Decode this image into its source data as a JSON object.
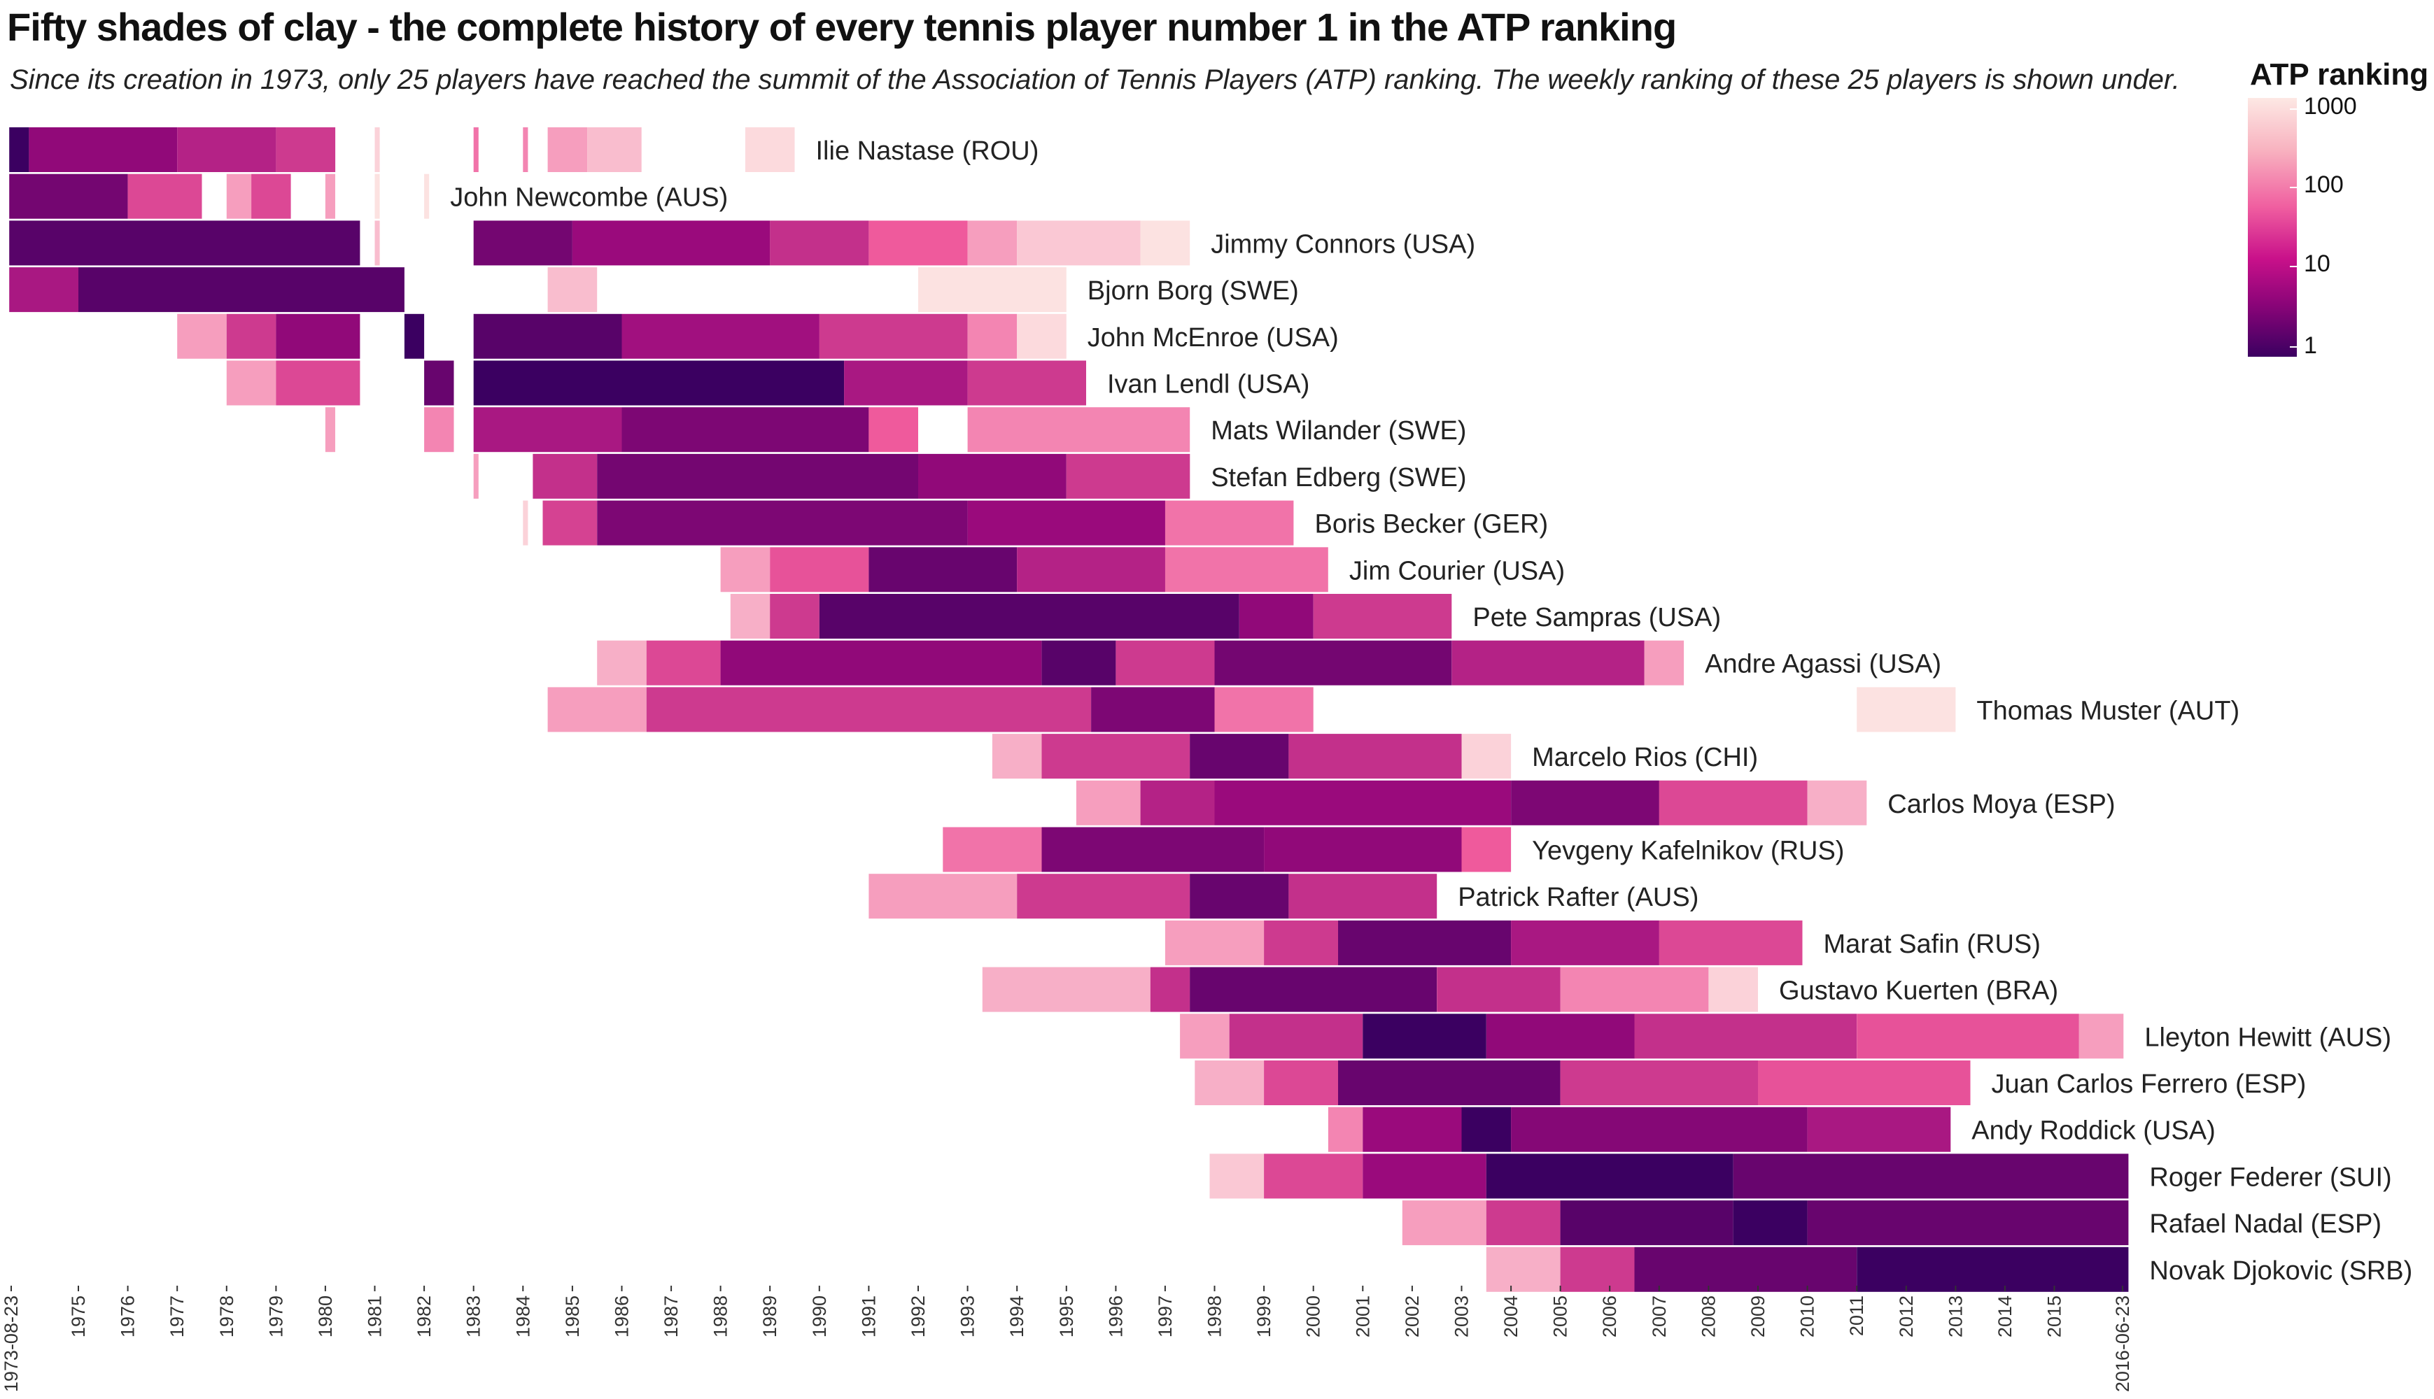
{
  "title": "Fifty shades of clay - the complete history of every tennis player number 1 in the ATP ranking",
  "subtitle": "Since its creation in 1973, only 25 players have reached the summit of the Association of Tennis Players (ATP) ranking. The weekly ranking of these 25 players is shown under.",
  "legend": {
    "title": "ATP ranking",
    "ticks": [
      "1000",
      "100",
      "10",
      "1"
    ]
  },
  "colors": {
    "rank_1": "#3b0061",
    "rank_10": "#9a0a7c",
    "rank_100": "#ef5a9c",
    "rank_1000": "#fde8e4"
  },
  "chart_data": {
    "type": "heatmap",
    "scale": "log",
    "x_start_label": "1973-08-23",
    "x_end_label": "2016-06-23",
    "x_tick_labels": [
      "1973-08-23",
      "1975",
      "1976",
      "1977",
      "1978",
      "1979",
      "1980",
      "1981",
      "1982",
      "1983",
      "1984",
      "1985",
      "1986",
      "1987",
      "1988",
      "1989",
      "1990",
      "1991",
      "1992",
      "1993",
      "1994",
      "1995",
      "1996",
      "1997",
      "1998",
      "1999",
      "2000",
      "2001",
      "2002",
      "2003",
      "2004",
      "2005",
      "2006",
      "2007",
      "2008",
      "2009",
      "2010",
      "2011",
      "2012",
      "2013",
      "2014",
      "2015",
      "2016-06-23"
    ],
    "series": [
      {
        "name": "Ilie Nastase (ROU)",
        "segments": [
          [
            1973.6,
            1974.0,
            1
          ],
          [
            1974.0,
            1977.0,
            8
          ],
          [
            1977.0,
            1979.0,
            20
          ],
          [
            1979.0,
            1980.2,
            40
          ],
          [
            1981.0,
            1981.1,
            700
          ],
          [
            1983.0,
            1983.1,
            150
          ],
          [
            1984.0,
            1984.1,
            200
          ],
          [
            1984.5,
            1985.3,
            300
          ],
          [
            1985.3,
            1986.4,
            500
          ],
          [
            1988.5,
            1989.5,
            800
          ]
        ]
      },
      {
        "name": "John Newcombe (AUS)",
        "segments": [
          [
            1973.6,
            1976.0,
            4
          ],
          [
            1976.0,
            1977.5,
            60
          ],
          [
            1978.0,
            1978.5,
            300
          ],
          [
            1978.5,
            1979.3,
            60
          ],
          [
            1980.0,
            1980.2,
            300
          ],
          [
            1981.0,
            1981.1,
            900
          ],
          [
            1982.0,
            1982.1,
            900
          ]
        ]
      },
      {
        "name": "Jimmy Connors (USA)",
        "segments": [
          [
            1973.6,
            1980.7,
            2
          ],
          [
            1981.0,
            1981.1,
            500
          ],
          [
            1983.0,
            1985.0,
            4
          ],
          [
            1985.0,
            1989.0,
            10
          ],
          [
            1989.0,
            1991.0,
            30
          ],
          [
            1991.0,
            1993.0,
            100
          ],
          [
            1993.0,
            1994.0,
            300
          ],
          [
            1994.0,
            1996.5,
            600
          ],
          [
            1996.5,
            1997.5,
            900
          ]
        ]
      },
      {
        "name": "Bjorn Borg (SWE)",
        "segments": [
          [
            1973.6,
            1975.0,
            15
          ],
          [
            1975.0,
            1981.6,
            2
          ],
          [
            1984.5,
            1985.5,
            500
          ],
          [
            1992.0,
            1995.0,
            900
          ]
        ]
      },
      {
        "name": "John McEnroe (USA)",
        "segments": [
          [
            1977.0,
            1978.0,
            300
          ],
          [
            1978.0,
            1979.0,
            40
          ],
          [
            1979.0,
            1980.7,
            8
          ],
          [
            1981.6,
            1982.0,
            1
          ],
          [
            1983.0,
            1986.0,
            2
          ],
          [
            1986.0,
            1990.0,
            12
          ],
          [
            1990.0,
            1993.0,
            40
          ],
          [
            1993.0,
            1994.0,
            200
          ],
          [
            1994.0,
            1995.0,
            800
          ]
        ]
      },
      {
        "name": "Ivan Lendl (USA)",
        "segments": [
          [
            1978.0,
            1979.0,
            300
          ],
          [
            1979.0,
            1980.7,
            60
          ],
          [
            1982.0,
            1982.6,
            3
          ],
          [
            1983.0,
            1990.5,
            1
          ],
          [
            1990.5,
            1993.0,
            15
          ],
          [
            1993.0,
            1995.4,
            40
          ]
        ]
      },
      {
        "name": "Mats Wilander (SWE)",
        "segments": [
          [
            1980.0,
            1980.2,
            300
          ],
          [
            1982.0,
            1982.6,
            200
          ],
          [
            1983.0,
            1986.0,
            15
          ],
          [
            1986.0,
            1991.0,
            5
          ],
          [
            1991.0,
            1992.0,
            100
          ],
          [
            1993.0,
            1997.5,
            200
          ]
        ]
      },
      {
        "name": "Stefan Edberg (SWE)",
        "segments": [
          [
            1983.0,
            1983.1,
            300
          ],
          [
            1984.2,
            1985.5,
            30
          ],
          [
            1985.5,
            1992.0,
            4
          ],
          [
            1992.0,
            1995.0,
            8
          ],
          [
            1995.0,
            1997.5,
            40
          ]
        ]
      },
      {
        "name": "Boris Becker (GER)",
        "segments": [
          [
            1984.0,
            1984.1,
            700
          ],
          [
            1984.4,
            1985.5,
            50
          ],
          [
            1985.5,
            1993.0,
            5
          ],
          [
            1993.0,
            1997.0,
            10
          ],
          [
            1997.0,
            1999.6,
            150
          ]
        ]
      },
      {
        "name": "Jim Courier (USA)",
        "segments": [
          [
            1988.0,
            1989.0,
            300
          ],
          [
            1989.0,
            1991.0,
            80
          ],
          [
            1991.0,
            1994.0,
            3
          ],
          [
            1994.0,
            1997.0,
            20
          ],
          [
            1997.0,
            2000.3,
            150
          ]
        ]
      },
      {
        "name": "Pete Sampras (USA)",
        "segments": [
          [
            1988.2,
            1989.0,
            400
          ],
          [
            1989.0,
            1990.0,
            40
          ],
          [
            1990.0,
            1998.5,
            2
          ],
          [
            1998.5,
            2000.0,
            8
          ],
          [
            2000.0,
            2002.8,
            40
          ]
        ]
      },
      {
        "name": "Andre Agassi (USA)",
        "segments": [
          [
            1985.5,
            1986.5,
            400
          ],
          [
            1986.5,
            1988.0,
            60
          ],
          [
            1988.0,
            1994.5,
            8
          ],
          [
            1994.5,
            1996.0,
            2
          ],
          [
            1996.0,
            1998.0,
            40
          ],
          [
            1998.0,
            2002.8,
            4
          ],
          [
            2002.8,
            2006.7,
            20
          ],
          [
            2006.7,
            2007.5,
            300
          ]
        ]
      },
      {
        "name": "Thomas Muster (AUT)",
        "segments": [
          [
            1984.5,
            1986.5,
            300
          ],
          [
            1986.5,
            1995.5,
            40
          ],
          [
            1995.5,
            1998.0,
            5
          ],
          [
            1998.0,
            2000.0,
            150
          ],
          [
            2011.0,
            2013.0,
            900
          ]
        ]
      },
      {
        "name": "Marcelo Rios (CHI)",
        "segments": [
          [
            1993.5,
            1994.5,
            400
          ],
          [
            1994.5,
            1997.5,
            40
          ],
          [
            1997.5,
            1999.5,
            3
          ],
          [
            1999.5,
            2003.0,
            30
          ],
          [
            2003.0,
            2004.0,
            700
          ]
        ]
      },
      {
        "name": "Carlos Moya (ESP)",
        "segments": [
          [
            1995.2,
            1996.5,
            300
          ],
          [
            1996.5,
            1998.0,
            20
          ],
          [
            1998.0,
            2004.0,
            10
          ],
          [
            2004.0,
            2007.0,
            5
          ],
          [
            2007.0,
            2010.0,
            60
          ],
          [
            2010.0,
            2011.2,
            400
          ]
        ]
      },
      {
        "name": "Yevgeny Kafelnikov (RUS)",
        "segments": [
          [
            1992.5,
            1994.5,
            150
          ],
          [
            1994.5,
            1999.0,
            5
          ],
          [
            1999.0,
            2003.0,
            8
          ],
          [
            2003.0,
            2004.0,
            100
          ]
        ]
      },
      {
        "name": "Patrick Rafter (AUS)",
        "segments": [
          [
            1991.0,
            1994.0,
            300
          ],
          [
            1994.0,
            1997.5,
            40
          ],
          [
            1997.5,
            1999.5,
            3
          ],
          [
            1999.5,
            2002.5,
            30
          ]
        ]
      },
      {
        "name": "Marat Safin (RUS)",
        "segments": [
          [
            1997.0,
            1999.0,
            300
          ],
          [
            1999.0,
            2000.5,
            40
          ],
          [
            2000.5,
            2004.0,
            3
          ],
          [
            2004.0,
            2007.0,
            15
          ],
          [
            2007.0,
            2009.9,
            60
          ]
        ]
      },
      {
        "name": "Gustavo Kuerten (BRA)",
        "segments": [
          [
            1993.3,
            1996.7,
            400
          ],
          [
            1996.7,
            1997.5,
            30
          ],
          [
            1997.5,
            2002.5,
            3
          ],
          [
            2002.5,
            2005.0,
            30
          ],
          [
            2005.0,
            2008.0,
            200
          ],
          [
            2008.0,
            2009.0,
            700
          ]
        ]
      },
      {
        "name": "Lleyton Hewitt (AUS)",
        "segments": [
          [
            1997.3,
            1998.3,
            300
          ],
          [
            1998.3,
            2001.0,
            30
          ],
          [
            2001.0,
            2003.5,
            1
          ],
          [
            2003.5,
            2006.5,
            8
          ],
          [
            2006.5,
            2011.0,
            30
          ],
          [
            2011.0,
            2015.5,
            80
          ],
          [
            2015.5,
            2016.4,
            300
          ]
        ]
      },
      {
        "name": "Juan Carlos Ferrero (ESP)",
        "segments": [
          [
            1997.6,
            1999.0,
            400
          ],
          [
            1999.0,
            2000.5,
            60
          ],
          [
            2000.5,
            2005.0,
            3
          ],
          [
            2005.0,
            2009.0,
            40
          ],
          [
            2009.0,
            2013.3,
            80
          ]
        ]
      },
      {
        "name": "Andy Roddick (USA)",
        "segments": [
          [
            2000.3,
            2001.0,
            200
          ],
          [
            2001.0,
            2003.0,
            10
          ],
          [
            2003.0,
            2004.0,
            1
          ],
          [
            2004.0,
            2010.0,
            6
          ],
          [
            2010.0,
            2012.9,
            15
          ]
        ]
      },
      {
        "name": "Roger Federer (SUI)",
        "segments": [
          [
            1997.9,
            1999.0,
            600
          ],
          [
            1999.0,
            2001.0,
            60
          ],
          [
            2001.0,
            2003.5,
            10
          ],
          [
            2003.5,
            2008.5,
            1
          ],
          [
            2008.5,
            2016.5,
            3
          ]
        ]
      },
      {
        "name": "Rafael Nadal (ESP)",
        "segments": [
          [
            2001.8,
            2003.5,
            300
          ],
          [
            2003.5,
            2005.0,
            40
          ],
          [
            2005.0,
            2008.5,
            2
          ],
          [
            2008.5,
            2010.0,
            1
          ],
          [
            2010.0,
            2016.5,
            3
          ]
        ]
      },
      {
        "name": "Novak Djokovic (SRB)",
        "segments": [
          [
            2003.5,
            2005.0,
            400
          ],
          [
            2005.0,
            2006.5,
            40
          ],
          [
            2006.5,
            2011.0,
            3
          ],
          [
            2011.0,
            2016.5,
            1
          ]
        ]
      }
    ]
  }
}
